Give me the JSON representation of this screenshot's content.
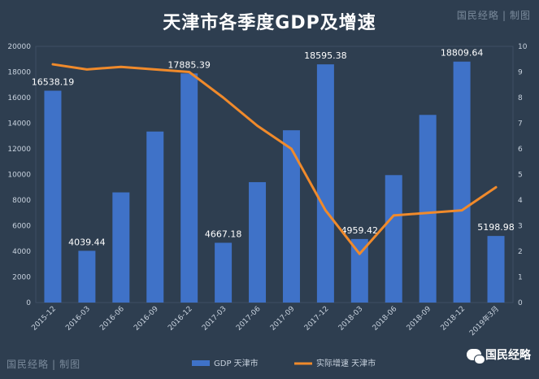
{
  "title": "天津市各季度GDP及增速",
  "brand": {
    "left": "国民经略",
    "separator": "|",
    "right": "制图"
  },
  "wechat_label": "国民经略",
  "colors": {
    "background": "#2e3e50",
    "bar": "#3f72c8",
    "line": "#f08a2b",
    "text": "#ffffff",
    "axis_text": "#c8d2de"
  },
  "chart_data": {
    "type": "bar",
    "categories": [
      "2015-12",
      "2016-03",
      "2016-06",
      "2016-09",
      "2016-12",
      "2017-03",
      "2017-06",
      "2017-09",
      "2017-12",
      "2018-03",
      "2018-06",
      "2018-09",
      "2018-12",
      "2019年3月"
    ],
    "series": [
      {
        "name": "GDP 天津市",
        "type": "bar",
        "axis": "left",
        "values": [
          16538.19,
          4039.44,
          8600,
          13350,
          17885.39,
          4667.18,
          9400,
          13450,
          18595.38,
          4959.42,
          9950,
          14650,
          18809.64,
          5198.98
        ],
        "labels": [
          "16538.19",
          "4039.44",
          "",
          "",
          "17885.39",
          "4667.18",
          "",
          "",
          "18595.38",
          "4959.42",
          "",
          "",
          "18809.64",
          "5198.98"
        ]
      },
      {
        "name": "实际增速 天津市",
        "type": "line",
        "axis": "right",
        "values": [
          9.3,
          9.1,
          9.2,
          9.1,
          9.0,
          8.0,
          6.9,
          6.0,
          3.6,
          1.9,
          3.4,
          3.5,
          3.6,
          4.5
        ]
      }
    ],
    "ylim_left": [
      0,
      20000
    ],
    "yticks_left": [
      0,
      2000,
      4000,
      6000,
      8000,
      10000,
      12000,
      14000,
      16000,
      18000,
      20000
    ],
    "ylim_right": [
      0,
      10
    ],
    "yticks_right": [
      0,
      1,
      2,
      3,
      4,
      5,
      6,
      7,
      8,
      9,
      10
    ],
    "legend_position": "bottom-center"
  }
}
